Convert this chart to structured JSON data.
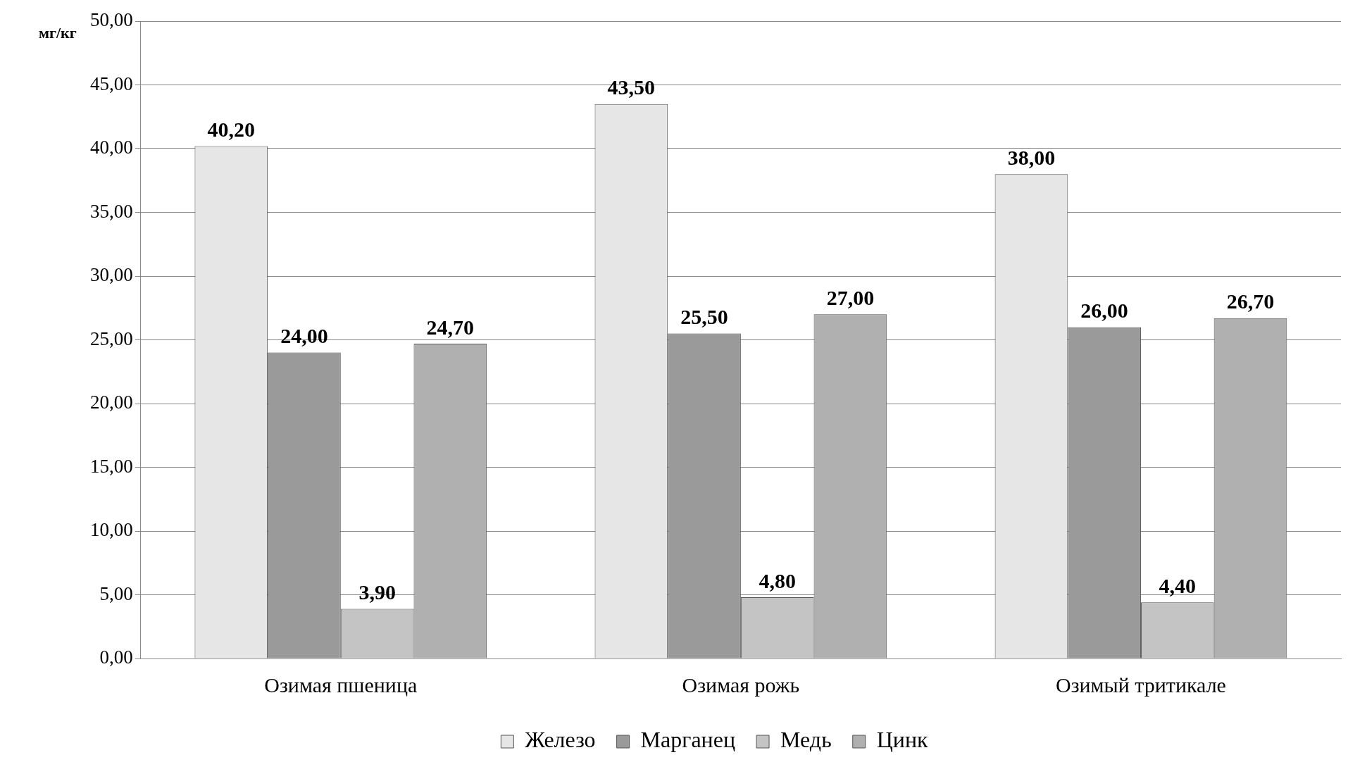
{
  "chart_data": {
    "type": "bar",
    "ylabel": "мг/кг",
    "categories": [
      "Озимая пшеница",
      "Озимая рожь",
      "Озимый тритикале"
    ],
    "series": [
      {
        "name": "Железо",
        "color": "#e6e6e6",
        "values": [
          40.2,
          43.5,
          38.0
        ],
        "value_labels": [
          "40,20",
          "43,50",
          "38,00"
        ]
      },
      {
        "name": "Марганец",
        "color": "#9a9a9a",
        "values": [
          24.0,
          25.5,
          26.0
        ],
        "value_labels": [
          "24,00",
          "25,50",
          "26,00"
        ]
      },
      {
        "name": "Медь",
        "color": "#c4c4c4",
        "values": [
          3.9,
          4.8,
          4.4
        ],
        "value_labels": [
          "3,90",
          "4,80",
          "4,40"
        ]
      },
      {
        "name": "Цинк",
        "color": "#b0b0b0",
        "values": [
          24.7,
          27.0,
          26.7
        ],
        "value_labels": [
          "24,70",
          "27,00",
          "26,70"
        ]
      }
    ],
    "ylim": [
      0,
      50
    ],
    "yticks": [
      {
        "value": 0,
        "label": "0,00"
      },
      {
        "value": 5,
        "label": "5,00"
      },
      {
        "value": 10,
        "label": "10,00"
      },
      {
        "value": 15,
        "label": "15,00"
      },
      {
        "value": 20,
        "label": "20,00"
      },
      {
        "value": 25,
        "label": "25,00"
      },
      {
        "value": 30,
        "label": "30,00"
      },
      {
        "value": 35,
        "label": "35,00"
      },
      {
        "value": 40,
        "label": "40,00"
      },
      {
        "value": 45,
        "label": "45,00"
      },
      {
        "value": 50,
        "label": "50,00"
      }
    ],
    "grid": "y",
    "legend": "bottom"
  }
}
